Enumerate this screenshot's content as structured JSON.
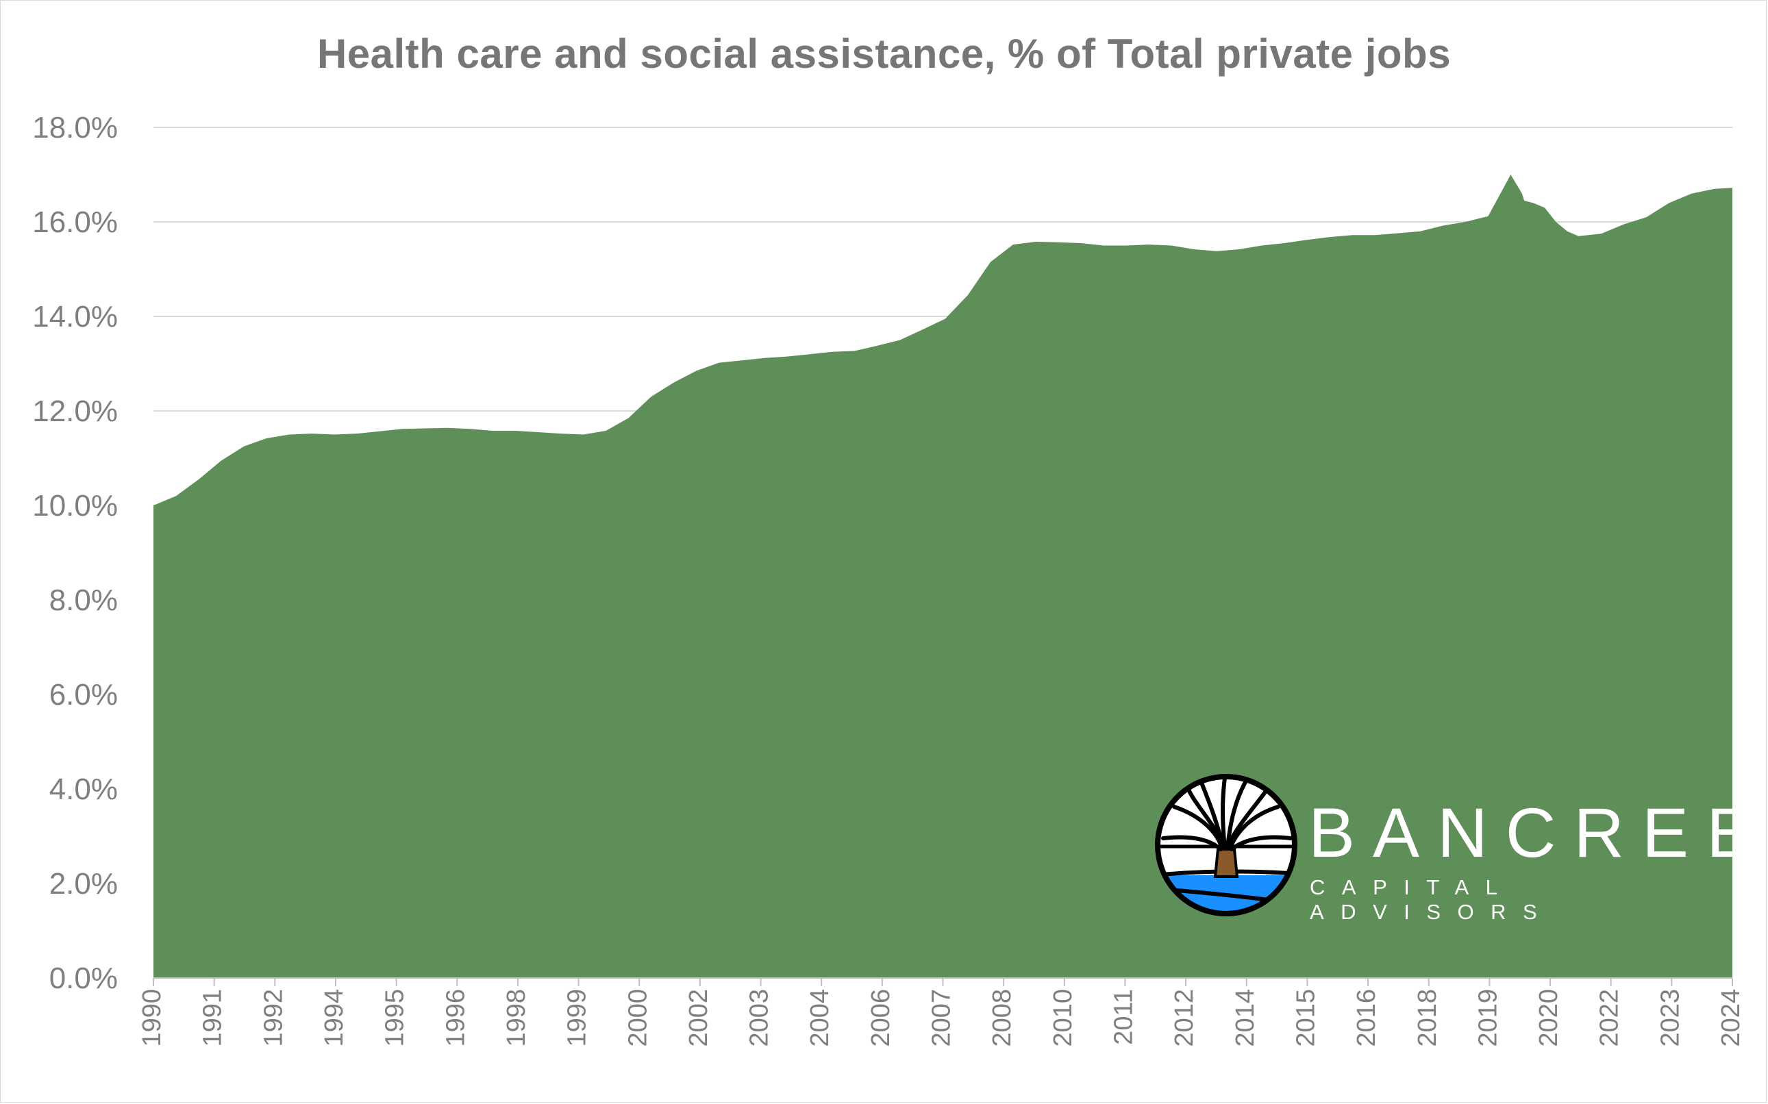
{
  "chart_data": {
    "type": "area",
    "title": "Health care and social assistance, % of Total private jobs",
    "xlabel": "",
    "ylabel": "",
    "ylim": [
      0,
      18
    ],
    "ytick_labels": [
      "0.0%",
      "2.0%",
      "4.0%",
      "6.0%",
      "8.0%",
      "10.0%",
      "12.0%",
      "14.0%",
      "16.0%",
      "18.0%"
    ],
    "xtick_labels": [
      "1990",
      "1991",
      "1992",
      "1994",
      "1995",
      "1996",
      "1998",
      "1999",
      "2000",
      "2002",
      "2003",
      "2004",
      "2006",
      "2007",
      "2008",
      "2010",
      "2011",
      "2012",
      "2014",
      "2015",
      "2016",
      "2018",
      "2019",
      "2020",
      "2022",
      "2023",
      "2024"
    ],
    "grid": true,
    "legend": "none",
    "fill_color": "#5f8f58",
    "x": [
      1990.0,
      1990.5,
      1991.0,
      1991.5,
      1992.0,
      1992.5,
      1993.0,
      1993.5,
      1994.0,
      1994.5,
      1995.0,
      1995.5,
      1996.0,
      1996.5,
      1997.0,
      1997.5,
      1998.0,
      1998.5,
      1999.0,
      1999.5,
      2000.0,
      2000.5,
      2001.0,
      2001.5,
      2002.0,
      2002.5,
      2003.0,
      2003.5,
      2004.0,
      2004.5,
      2005.0,
      2005.5,
      2006.0,
      2006.5,
      2007.0,
      2007.5,
      2008.0,
      2008.5,
      2009.0,
      2009.5,
      2010.0,
      2010.5,
      2011.0,
      2011.5,
      2012.0,
      2012.5,
      2013.0,
      2013.5,
      2014.0,
      2014.5,
      2015.0,
      2015.5,
      2016.0,
      2016.5,
      2017.0,
      2017.5,
      2018.0,
      2018.5,
      2019.0,
      2019.5,
      2020.0,
      2020.25,
      2020.3,
      2020.5,
      2020.75,
      2021.0,
      2021.25,
      2021.5,
      2022.0,
      2022.5,
      2023.0,
      2023.5,
      2024.0,
      2024.5,
      2024.9
    ],
    "values": [
      10.0,
      10.2,
      10.55,
      10.95,
      11.25,
      11.42,
      11.5,
      11.52,
      11.5,
      11.52,
      11.57,
      11.62,
      11.63,
      11.64,
      11.62,
      11.58,
      11.58,
      11.55,
      11.52,
      11.5,
      11.58,
      11.85,
      12.3,
      12.6,
      12.85,
      13.02,
      13.07,
      13.12,
      13.15,
      13.2,
      13.25,
      13.27,
      13.38,
      13.5,
      13.72,
      13.95,
      14.45,
      15.15,
      15.52,
      15.58,
      15.57,
      15.55,
      15.5,
      15.5,
      15.52,
      15.5,
      15.42,
      15.38,
      15.42,
      15.5,
      15.55,
      15.62,
      15.68,
      15.72,
      15.72,
      15.76,
      15.8,
      15.92,
      16.0,
      16.12,
      17.0,
      16.6,
      16.45,
      16.4,
      16.3,
      16.0,
      15.8,
      15.7,
      15.75,
      15.95,
      16.1,
      16.4,
      16.6,
      16.7,
      16.72
    ]
  },
  "branding": {
    "name": "BANCREEK",
    "subtitle": "CAPITAL ADVISORS"
  }
}
